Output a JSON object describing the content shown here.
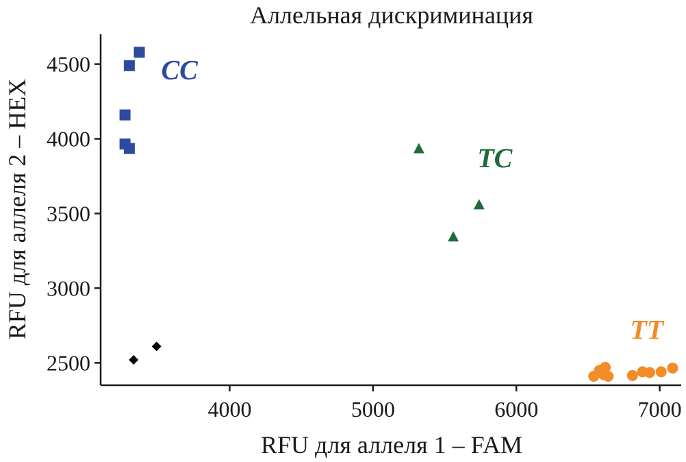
{
  "chart_data": {
    "type": "scatter",
    "title": "Аллельная дискриминация",
    "xlabel": "RFU для аллеля 1 – FAM",
    "ylabel": "RFU для аллеля 2 – HEX",
    "xlim": [
      3100,
      7150
    ],
    "ylim": [
      2350,
      4700
    ],
    "xticks": [
      4000,
      5000,
      6000,
      7000
    ],
    "yticks": [
      2500,
      3000,
      3500,
      4000,
      4500
    ],
    "grid": false,
    "legend": "none",
    "series": [
      {
        "label": "CC",
        "color": "#2e4a9e",
        "marker": "square",
        "points": [
          [
            3270,
            4160
          ],
          [
            3300,
            4490
          ],
          [
            3370,
            4580
          ],
          [
            3270,
            3965
          ],
          [
            3300,
            3935
          ]
        ]
      },
      {
        "label": "TC",
        "color": "#1f6b3a",
        "marker": "triangle",
        "points": [
          [
            5320,
            3935
          ],
          [
            5560,
            3345
          ],
          [
            5740,
            3560
          ]
        ]
      },
      {
        "label": "TT",
        "color": "#f28c28",
        "marker": "circle",
        "points": [
          [
            6540,
            2410
          ],
          [
            6580,
            2450
          ],
          [
            6620,
            2470
          ],
          [
            6610,
            2420
          ],
          [
            6640,
            2410
          ],
          [
            6810,
            2415
          ],
          [
            6880,
            2440
          ],
          [
            6930,
            2435
          ],
          [
            7010,
            2440
          ],
          [
            7090,
            2465
          ]
        ]
      },
      {
        "label": "",
        "color": "#000000",
        "marker": "diamond",
        "points": [
          [
            3330,
            2520
          ],
          [
            3490,
            2610
          ]
        ]
      }
    ],
    "annotations": [
      {
        "text": "CC",
        "x": 3650,
        "y": 4400,
        "color": "#2e4a9e"
      },
      {
        "text": "TC",
        "x": 5850,
        "y": 3810,
        "color": "#1f6b3a"
      },
      {
        "text": "TT",
        "x": 6910,
        "y": 2660,
        "color": "#f28c28"
      }
    ]
  }
}
